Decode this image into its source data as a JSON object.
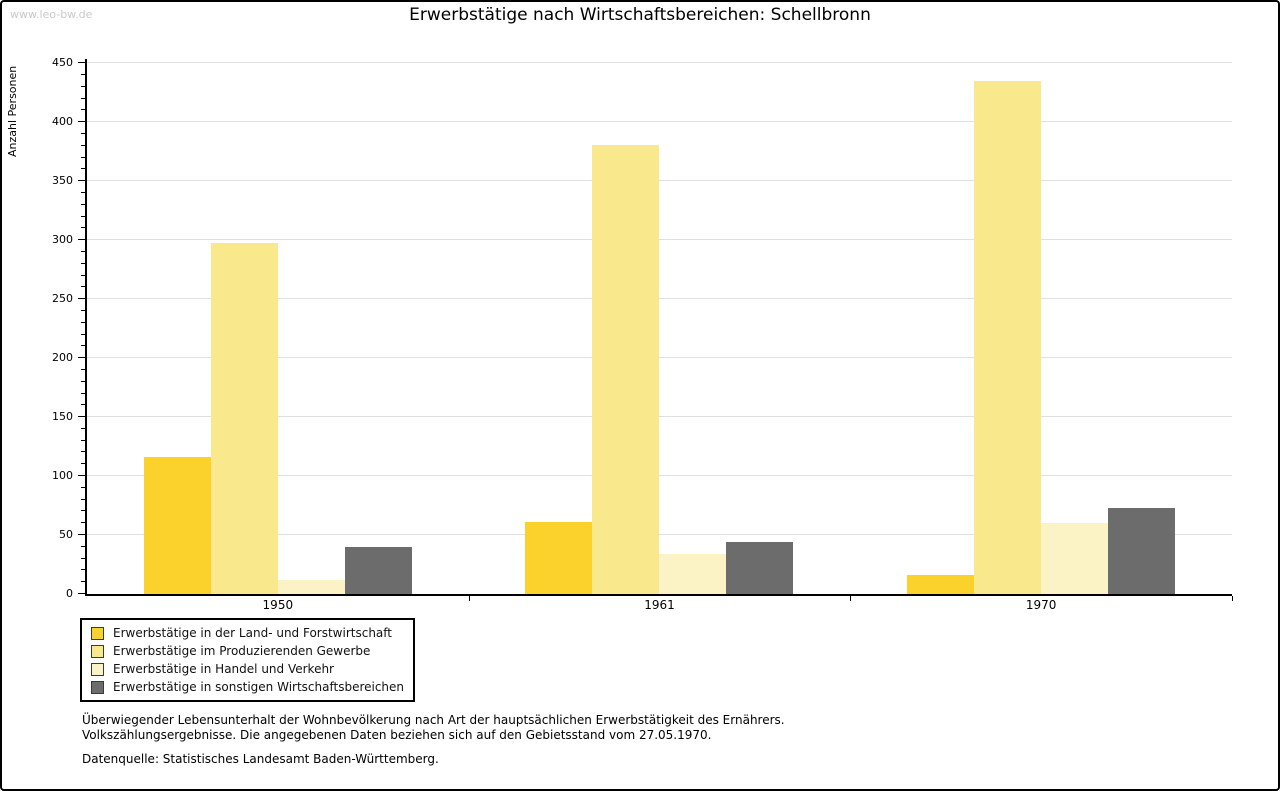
{
  "watermark": "www.leo-bw.de",
  "chart_data": {
    "type": "bar",
    "title": "Erwerbstätige nach Wirtschaftsbereichen: Schellbronn",
    "ylabel": "Anzahl Personen",
    "xlabel": "",
    "categories": [
      "1950",
      "1961",
      "1970"
    ],
    "series": [
      {
        "name": "Erwerbstätige in der Land- und Forstwirtschaft",
        "color": "#fbd22b",
        "values": [
          116,
          61,
          16
        ]
      },
      {
        "name": "Erwerbstätige im Produzierenden Gewerbe",
        "color": "#fae98c",
        "values": [
          298,
          381,
          435
        ]
      },
      {
        "name": "Erwerbstätige in Handel und Verkehr",
        "color": "#fbf3c6",
        "values": [
          12,
          34,
          60
        ]
      },
      {
        "name": "Erwerbstätige in sonstigen Wirtschaftsbereichen",
        "color": "#6c6c6c",
        "values": [
          40,
          44,
          73
        ]
      }
    ],
    "ylim": [
      0,
      450
    ],
    "ytick_step": 50,
    "y_minor_tick_step": 10,
    "grid": true,
    "gridline_color": "#e0e0e0",
    "legend_position": "bottom-left"
  },
  "footer": {
    "lines": [
      "Überwiegender Lebensunterhalt der Wohnbevölkerung nach Art der hauptsächlichen Erwerbstätigkeit des Ernährers.",
      "Volkszählungsergebnisse. Die angegebenen Daten beziehen sich auf den Gebietsstand vom 27.05.1970."
    ],
    "source": "Datenquelle: Statistisches Landesamt Baden-Württemberg."
  }
}
